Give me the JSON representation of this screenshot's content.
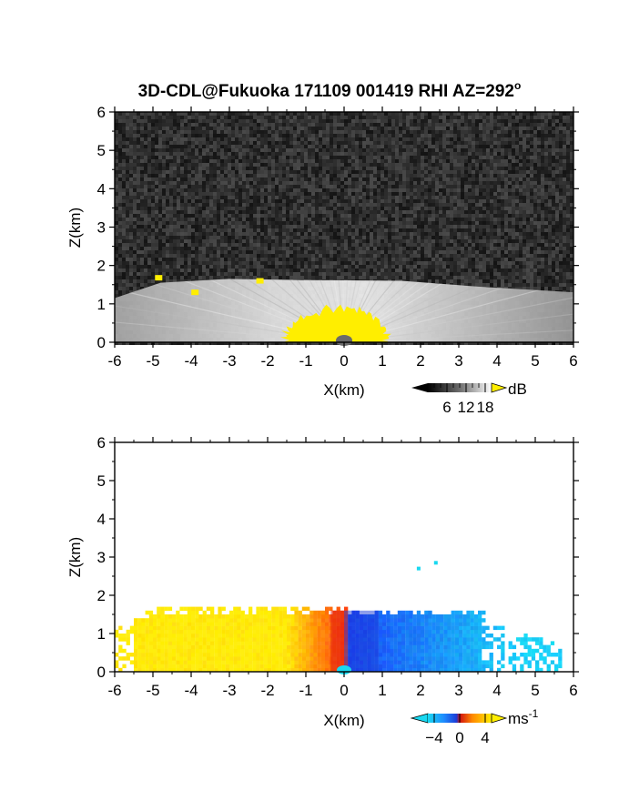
{
  "figure": {
    "title": "3D-CDL@Fukuoka 171109 001419 RHI AZ=292",
    "title_suffix": "o"
  },
  "colors": {
    "background": "#ffffff",
    "noise_dark": "#2a2a2a",
    "highlight_yellow": "#ffee00",
    "velocity_neg": "#1e5cff",
    "velocity_zero": "#ff3a00",
    "velocity_pos": "#ffee00",
    "velocity_cyan": "#18d8f0"
  },
  "chart_data": [
    {
      "type": "heatmap",
      "panel": "top",
      "quantity": "SNR",
      "xlabel": "X(km)",
      "ylabel": "Z(km)",
      "xlim": [
        -6,
        6
      ],
      "ylim": [
        0,
        6
      ],
      "xticks": [
        "-6",
        "-5",
        "-4",
        "-3",
        "-2",
        "-1",
        "0",
        "1",
        "2",
        "3",
        "4",
        "5",
        "6"
      ],
      "yticks": [
        "0",
        "1",
        "2",
        "3",
        "4",
        "5",
        "6"
      ],
      "colorbar": {
        "unit": "dB",
        "ticks": [
          6,
          12,
          18
        ],
        "tick_labels": [
          "6",
          "12",
          "18"
        ],
        "range": [
          0,
          20
        ],
        "scale": "grayscale",
        "overflow_color": "yellow"
      },
      "features": {
        "boundary_layer_top_km": 1.5,
        "strong_echo_region": {
          "x_range_km": [
            -1.8,
            1.3
          ],
          "z_max_km": 0.9
        },
        "isolated_strong_echoes": [
          {
            "x_km": -4.85,
            "z_km": 1.68
          },
          {
            "x_km": -2.2,
            "z_km": 1.6
          },
          {
            "x_km": -3.9,
            "z_km": 1.3
          }
        ]
      },
      "grid": false
    },
    {
      "type": "heatmap",
      "panel": "bottom",
      "quantity": "Doppler velocity",
      "xlabel": "X(km)",
      "ylabel": "Z(km)",
      "xlim": [
        -6,
        6
      ],
      "ylim": [
        0,
        6
      ],
      "xticks": [
        "-6",
        "-5",
        "-4",
        "-3",
        "-2",
        "-1",
        "0",
        "1",
        "2",
        "3",
        "4",
        "5",
        "6"
      ],
      "yticks": [
        "0",
        "1",
        "2",
        "3",
        "4",
        "5",
        "6"
      ],
      "colorbar": {
        "unit": "ms",
        "unit_exponent": "-1",
        "ticks": [
          -4,
          0,
          4
        ],
        "tick_labels": [
          "−4",
          "0",
          "4"
        ],
        "range": [
          -5,
          5
        ],
        "scale": "cyan-blue-red-orange-yellow"
      },
      "features": {
        "valid_data_top_km": 1.65,
        "negative_side_x_range_km": [
          0.0,
          5.6
        ],
        "positive_side_x_range_km": [
          -6.0,
          0.0
        ],
        "isolated_points": [
          {
            "x_km": 1.95,
            "z_km": 2.7
          },
          {
            "x_km": 2.4,
            "z_km": 2.85
          }
        ]
      },
      "grid": false
    }
  ]
}
